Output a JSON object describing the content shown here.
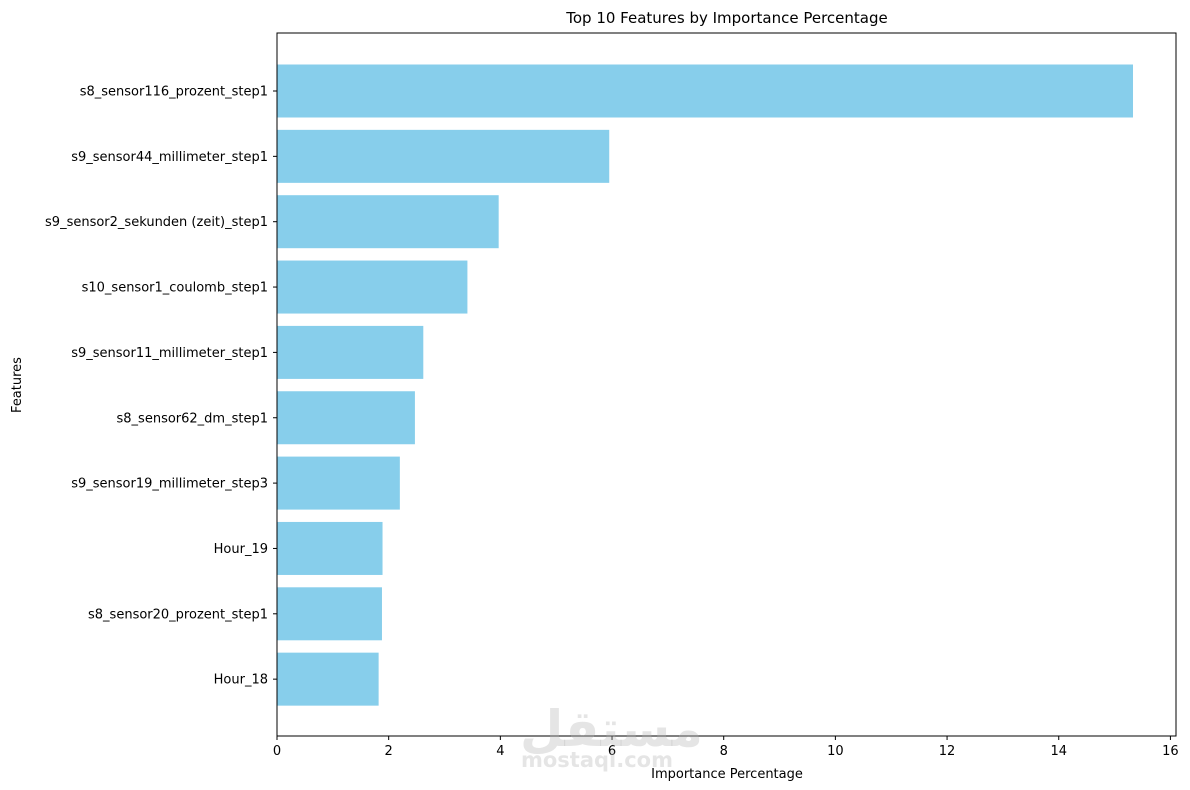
{
  "chart_data": {
    "type": "bar",
    "orientation": "horizontal",
    "title": "Top 10 Features by Importance Percentage",
    "xlabel": "Importance Percentage",
    "ylabel": "Features",
    "xlim": [
      0,
      16.1
    ],
    "xticks": [
      0,
      2,
      4,
      6,
      8,
      10,
      12,
      14,
      16
    ],
    "grid": false,
    "bar_color": "#87ceeb",
    "categories": [
      "s8_sensor116_prozent_step1",
      "s9_sensor44_millimeter_step1",
      "s9_sensor2_sekunden (zeit)_step1",
      "s10_sensor1_coulomb_step1",
      "s9_sensor11_millimeter_step1",
      "s8_sensor62_dm_step1",
      "s9_sensor19_millimeter_step3",
      "Hour_19",
      "s8_sensor20_prozent_step1",
      "Hour_18"
    ],
    "values": [
      15.33,
      5.95,
      3.97,
      3.41,
      2.62,
      2.47,
      2.2,
      1.89,
      1.88,
      1.82
    ]
  },
  "watermark": {
    "arabic": "مستقل",
    "latin": "mostaql.com"
  }
}
